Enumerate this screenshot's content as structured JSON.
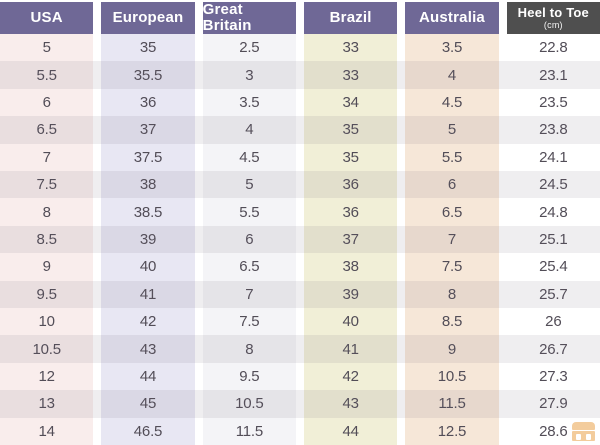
{
  "chart_data": {
    "type": "table",
    "columns": [
      {
        "id": "usa",
        "label": "USA"
      },
      {
        "id": "european",
        "label": "European"
      },
      {
        "id": "great-britain",
        "label": "Great Britain"
      },
      {
        "id": "brazil",
        "label": "Brazil"
      },
      {
        "id": "australia",
        "label": "Australia"
      },
      {
        "id": "heel-to-toe",
        "label": "Heel to Toe",
        "sublabel": "(cm)"
      }
    ],
    "rows": [
      [
        "5",
        "35",
        "2.5",
        "33",
        "3.5",
        "22.8"
      ],
      [
        "5.5",
        "35.5",
        "3",
        "33",
        "4",
        "23.1"
      ],
      [
        "6",
        "36",
        "3.5",
        "34",
        "4.5",
        "23.5"
      ],
      [
        "6.5",
        "37",
        "4",
        "35",
        "5",
        "23.8"
      ],
      [
        "7",
        "37.5",
        "4.5",
        "35",
        "5.5",
        "24.1"
      ],
      [
        "7.5",
        "38",
        "5",
        "36",
        "6",
        "24.5"
      ],
      [
        "8",
        "38.5",
        "5.5",
        "36",
        "6.5",
        "24.8"
      ],
      [
        "8.5",
        "39",
        "6",
        "37",
        "7",
        "25.1"
      ],
      [
        "9",
        "40",
        "6.5",
        "38",
        "7.5",
        "25.4"
      ],
      [
        "9.5",
        "41",
        "7",
        "39",
        "8",
        "25.7"
      ],
      [
        "10",
        "42",
        "7.5",
        "40",
        "8.5",
        "26"
      ],
      [
        "10.5",
        "43",
        "8",
        "41",
        "9",
        "26.7"
      ],
      [
        "12",
        "44",
        "9.5",
        "42",
        "10.5",
        "27.3"
      ],
      [
        "13",
        "45",
        "10.5",
        "43",
        "11.5",
        "27.9"
      ],
      [
        "14",
        "46.5",
        "11.5",
        "44",
        "12.5",
        "28.6"
      ]
    ]
  },
  "colors": {
    "header_bg": "#6f6896",
    "header_last_bg": "#4f4f4f",
    "header_text": "#ffffff",
    "cell_text": "#524d57",
    "column_tints": [
      "#f9edec",
      "#e8e7f3",
      "#f4f4f7",
      "#f1efd7",
      "#f6e7d8",
      "#ffffff"
    ],
    "stripe_overlay": "rgba(106,100,115,0.11)",
    "watermark_orange": "#e89a3c"
  },
  "icons": {
    "watermark": "watermark-logo-icon"
  }
}
